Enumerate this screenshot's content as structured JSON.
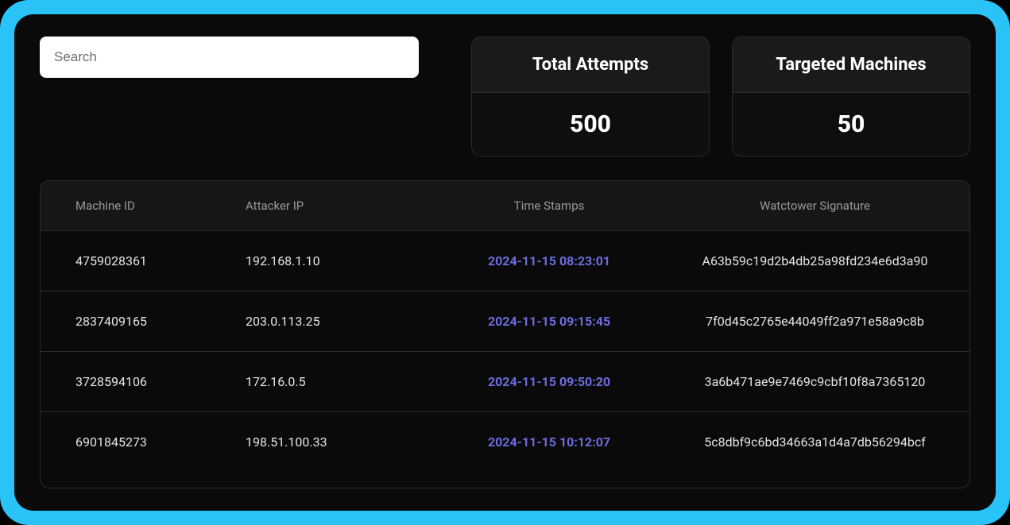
{
  "search": {
    "placeholder": "Search",
    "value": ""
  },
  "stats": {
    "total_attempts": {
      "label": "Total Attempts",
      "value": "500"
    },
    "targeted_machines": {
      "label": "Targeted Machines",
      "value": "50"
    }
  },
  "table": {
    "columns": {
      "machine_id": "Machine ID",
      "attacker_ip": "Attacker IP",
      "time_stamps": "Time Stamps",
      "signature": "Watctower Signature"
    },
    "rows": [
      {
        "machine_id": "4759028361",
        "attacker_ip": "192.168.1.10",
        "time_stamp": "2024-11-15 08:23:01",
        "signature": "A63b59c19d2b4db25a98fd234e6d3a90"
      },
      {
        "machine_id": "2837409165",
        "attacker_ip": "203.0.113.25",
        "time_stamp": "2024-11-15 09:15:45",
        "signature": "7f0d45c2765e44049ff2a971e58a9c8b"
      },
      {
        "machine_id": "3728594106",
        "attacker_ip": "172.16.0.5",
        "time_stamp": "2024-11-15 09:50:20",
        "signature": "3a6b471ae9e7469c9cbf10f8a7365120"
      },
      {
        "machine_id": "6901845273",
        "attacker_ip": "198.51.100.33",
        "time_stamp": "2024-11-15 10:12:07",
        "signature": "5c8dbf9c6bd34663a1d4a7db56294bcf"
      }
    ]
  },
  "colors": {
    "frame_accent": "#29c3f7",
    "background": "#0a0a0a",
    "card_header": "#1a1a1a",
    "card_body": "#0e0e0e",
    "border": "#2c2c2c",
    "text_primary": "#ffffff",
    "text_secondary": "#9a9a9a",
    "text_body": "#e5e5e5",
    "timestamp": "#6c6ce0",
    "search_bg": "#ffffff"
  }
}
